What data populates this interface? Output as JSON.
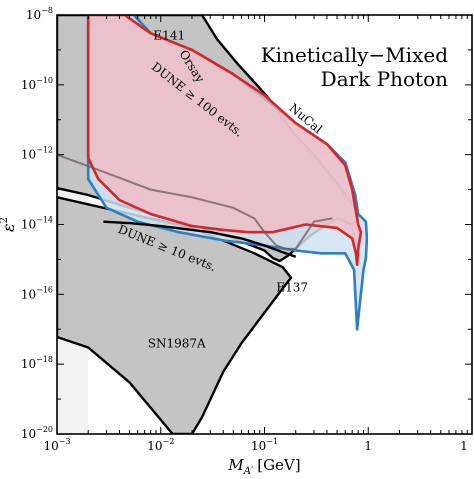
{
  "chart_data": {
    "type": "area",
    "title_lines": [
      "Kinetically−Mixed",
      "Dark Photon"
    ],
    "xlabel": "M_A′ [GeV]",
    "xlabel_main": "M",
    "xlabel_sub": "A′",
    "xlabel_unit": "[GeV]",
    "ylabel": "ε²",
    "ylabel_main": "ε",
    "ylabel_sup": "2",
    "x_scale": "log",
    "y_scale": "log",
    "xlim": [
      0.001,
      10
    ],
    "ylim": [
      1e-20,
      1e-08
    ],
    "x_ticks": [
      {
        "value": 0.001,
        "base": "10",
        "exp": "−3"
      },
      {
        "value": 0.01,
        "base": "10",
        "exp": "−2"
      },
      {
        "value": 0.1,
        "base": "10",
        "exp": "−1"
      },
      {
        "value": 1,
        "base": "1",
        "exp": ""
      },
      {
        "value": 10,
        "base": "1",
        "exp": ""
      }
    ],
    "y_ticks": [
      {
        "value": 1e-20,
        "base": "10",
        "exp": "−20"
      },
      {
        "value": 1e-18,
        "base": "10",
        "exp": "−18"
      },
      {
        "value": 1e-16,
        "base": "10",
        "exp": "−16"
      },
      {
        "value": 1e-14,
        "base": "10",
        "exp": "−14"
      },
      {
        "value": 1e-12,
        "base": "10",
        "exp": "−12"
      },
      {
        "value": 1e-10,
        "base": "10",
        "exp": "−10"
      },
      {
        "value": 1e-08,
        "base": "10",
        "exp": "−8"
      }
    ],
    "colors": {
      "excluded_fill": "#c4c4c4",
      "excluded_edge": "#000000",
      "dune100": "#d62728",
      "dune100_fill": "#f2b8c0",
      "dune10": "#2e7fc0",
      "dune10_fill": "#cfe2f0",
      "light_band": "#e6e6e6"
    },
    "regions": [
      {
        "name": "Excluded (upper)",
        "role": "excluded",
        "points": [
          [
            0.001,
            1e-08
          ],
          [
            0.025,
            1e-08
          ],
          [
            0.035,
            2e-09
          ],
          [
            0.055,
            4e-10
          ],
          [
            0.09,
            8e-11
          ],
          [
            0.12,
            3e-11
          ],
          [
            0.18,
            5e-12
          ],
          [
            0.3,
            1e-12
          ],
          [
            0.5,
            1.5e-13
          ],
          [
            0.75,
            3e-14
          ],
          [
            0.8,
            1.5e-14
          ],
          [
            0.7,
            1e-14
          ],
          [
            0.5,
            1.5e-14
          ],
          [
            0.28,
            5e-15
          ],
          [
            0.17,
            1.3e-15
          ],
          [
            0.14,
            9e-16
          ],
          [
            0.12,
            1.1e-15
          ],
          [
            0.1,
            1.8e-15
          ],
          [
            0.05,
            4e-15
          ],
          [
            0.02,
            1e-14
          ],
          [
            0.005,
            3e-14
          ],
          [
            0.002,
            7e-14
          ],
          [
            0.001,
            1.1e-13
          ]
        ]
      },
      {
        "name": "SN1987A",
        "role": "excluded",
        "points": [
          [
            0.001,
            6e-14
          ],
          [
            0.02,
            8e-15
          ],
          [
            0.08,
            1.5e-15
          ],
          [
            0.15,
            6e-16
          ],
          [
            0.18,
            3e-16
          ],
          [
            0.15,
            1.5e-16
          ],
          [
            0.1,
            3e-17
          ],
          [
            0.06,
            4e-18
          ],
          [
            0.04,
            6e-19
          ],
          [
            0.025,
            3e-20
          ],
          [
            0.02,
            1e-20
          ],
          [
            0.013,
            1e-20
          ],
          [
            0.005,
            3e-19
          ],
          [
            0.002,
            3e-18
          ],
          [
            0.001,
            6e-18
          ]
        ]
      },
      {
        "name": "DUNE ≥ 10 evts.",
        "role": "dune10",
        "points": [
          [
            0.002,
            1e-08
          ],
          [
            0.0055,
            1e-08
          ],
          [
            0.008,
            3e-09
          ],
          [
            0.02,
            1e-09
          ],
          [
            0.05,
            2e-10
          ],
          [
            0.1,
            4e-11
          ],
          [
            0.2,
            8e-12
          ],
          [
            0.4,
            2e-12
          ],
          [
            0.6,
            6e-13
          ],
          [
            0.75,
            7e-14
          ],
          [
            0.8,
            2e-14
          ],
          [
            0.95,
            1.2e-14
          ],
          [
            0.97,
            4e-15
          ],
          [
            0.95,
            1.1e-15
          ],
          [
            0.9,
            5e-16
          ],
          [
            0.78,
            1e-17
          ],
          [
            0.73,
            5e-16
          ],
          [
            0.6,
            1.5e-15
          ],
          [
            0.35,
            1.5e-15
          ],
          [
            0.2,
            1.8e-15
          ],
          [
            0.1,
            2.5e-15
          ],
          [
            0.04,
            3.5e-15
          ],
          [
            0.015,
            6e-15
          ],
          [
            0.006,
            1.2e-14
          ],
          [
            0.003,
            3e-14
          ],
          [
            0.002,
            2e-13
          ]
        ]
      },
      {
        "name": "DUNE ≥ 100 evts.",
        "role": "dune100",
        "points": [
          [
            0.002,
            1e-08
          ],
          [
            0.0045,
            1e-08
          ],
          [
            0.008,
            3e-09
          ],
          [
            0.02,
            1e-09
          ],
          [
            0.05,
            2e-10
          ],
          [
            0.1,
            5e-11
          ],
          [
            0.2,
            8e-12
          ],
          [
            0.4,
            2e-12
          ],
          [
            0.6,
            5e-13
          ],
          [
            0.7,
            1e-13
          ],
          [
            0.75,
            3e-14
          ],
          [
            0.8,
            1e-14
          ],
          [
            0.85,
            6e-15
          ],
          [
            0.8,
            2e-15
          ],
          [
            0.78,
            7e-16
          ],
          [
            0.76,
            1.5e-15
          ],
          [
            0.7,
            4e-15
          ],
          [
            0.5,
            8e-15
          ],
          [
            0.25,
            1e-14
          ],
          [
            0.18,
            8e-15
          ],
          [
            0.12,
            6e-15
          ],
          [
            0.07,
            6e-15
          ],
          [
            0.04,
            7e-15
          ],
          [
            0.02,
            9e-15
          ],
          [
            0.008,
            2e-14
          ],
          [
            0.004,
            5e-14
          ],
          [
            0.0025,
            2e-13
          ],
          [
            0.002,
            8e-13
          ]
        ]
      }
    ],
    "boundary_lines": [
      {
        "name": "SN1987A upper edge",
        "points": [
          [
            0.001,
            1e-12
          ],
          [
            0.003,
            3e-13
          ],
          [
            0.008,
            1e-13
          ],
          [
            0.02,
            6e-14
          ],
          [
            0.05,
            3e-14
          ],
          [
            0.08,
            1.5e-14
          ],
          [
            0.1,
            6e-15
          ],
          [
            0.13,
            2.5e-15
          ],
          [
            0.16,
            2e-15
          ],
          [
            0.2,
            2e-15
          ],
          [
            0.3,
            1.2e-14
          ],
          [
            0.45,
            1.5e-14
          ]
        ]
      },
      {
        "name": "E137 edge",
        "points": [
          [
            0.0028,
            1.2e-14
          ],
          [
            0.005,
            1.1e-14
          ],
          [
            0.01,
            9e-15
          ],
          [
            0.03,
            6e-15
          ],
          [
            0.06,
            4e-15
          ],
          [
            0.1,
            2.5e-15
          ],
          [
            0.15,
            1.6e-15
          ],
          [
            0.2,
            1.2e-15
          ]
        ]
      }
    ],
    "labels": [
      {
        "text": "E141",
        "x": 0.0085,
        "y": 2e-09,
        "rotate": 0
      },
      {
        "text": "Orsay",
        "x": 0.015,
        "y": 8e-10,
        "rotate": 58
      },
      {
        "text": "NuCal",
        "x": 0.17,
        "y": 2e-11,
        "rotate": 40
      },
      {
        "text": "DUNE ≥ 100 evts.",
        "x": 0.008,
        "y": 3e-10,
        "rotate": 38,
        "role": "dune100"
      },
      {
        "text": "DUNE ≥ 10 evts.",
        "x": 0.0038,
        "y": 6e-15,
        "rotate": 22,
        "role": "dune10"
      },
      {
        "text": "E137",
        "x": 0.13,
        "y": 1.2e-16,
        "rotate": 0
      },
      {
        "text": "SN1987A",
        "x": 0.0075,
        "y": 3e-18,
        "rotate": 0
      }
    ],
    "grid": false,
    "legend": "none"
  }
}
